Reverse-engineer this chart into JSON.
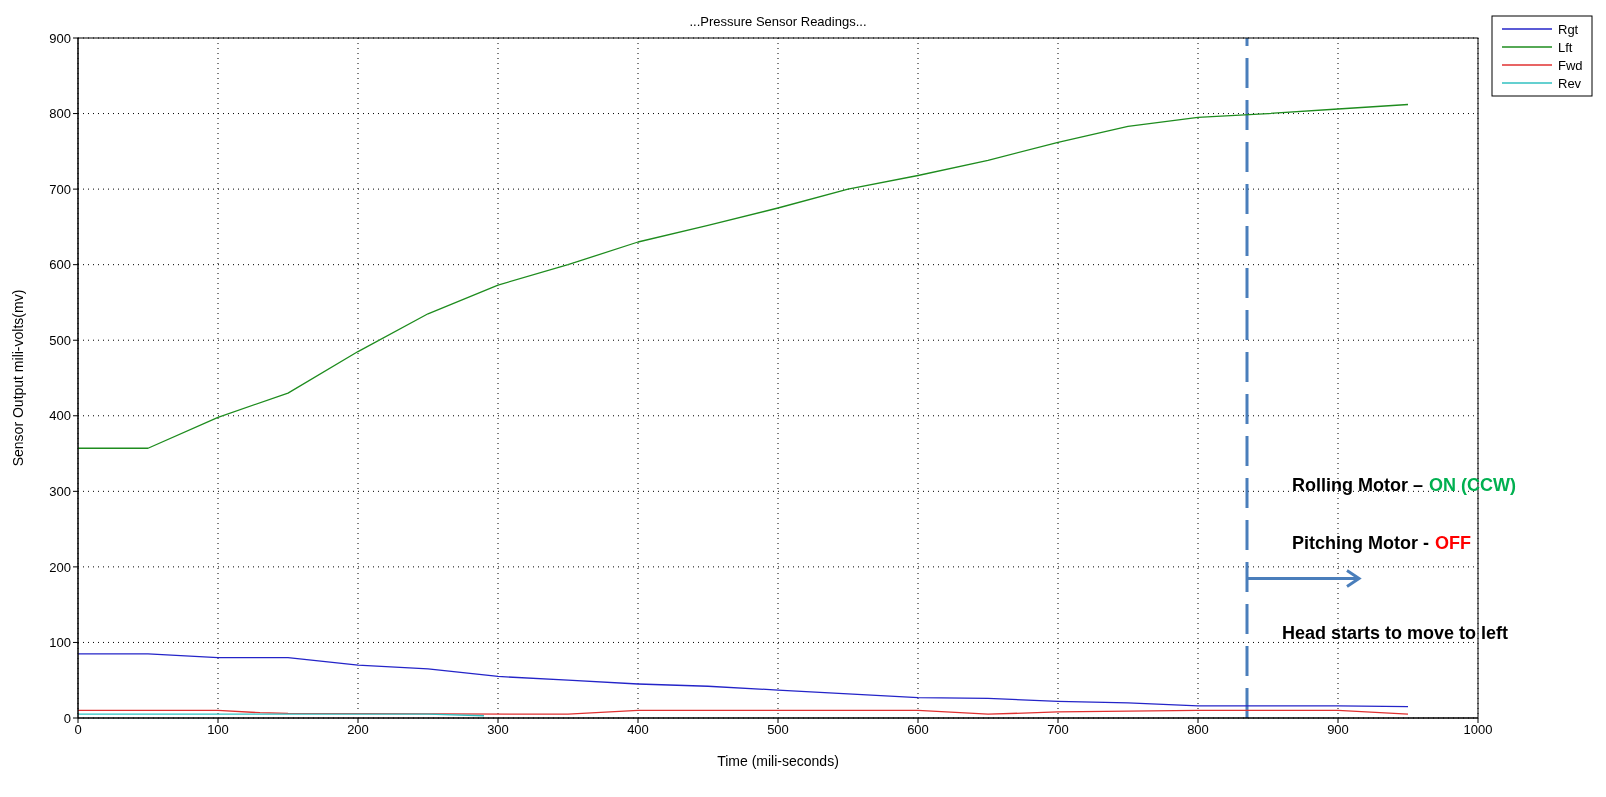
{
  "chart_data": {
    "type": "line",
    "title": "...Pressure Sensor Readings...",
    "xlabel": "Time (mili-seconds)",
    "ylabel": "Sensor Output mili-volts(mv)",
    "xlim": [
      0,
      1000
    ],
    "xticks": [
      0,
      100,
      200,
      300,
      400,
      500,
      600,
      700,
      800,
      900,
      1000
    ],
    "ylim": [
      0,
      900
    ],
    "yticks": [
      0,
      100,
      200,
      300,
      400,
      500,
      600,
      700,
      800,
      900
    ],
    "grid": true,
    "legend": "top right",
    "marker": "none",
    "line_style": "solid",
    "series": [
      {
        "name": "Rgt",
        "color": "#2424c8",
        "x": [
          0,
          50,
          100,
          150,
          200,
          250,
          300,
          350,
          400,
          450,
          500,
          550,
          600,
          650,
          700,
          750,
          800,
          850,
          900,
          950
        ],
        "values": [
          85,
          85,
          80,
          80,
          70,
          65,
          55,
          50,
          45,
          42,
          37,
          32,
          27,
          26,
          22,
          20,
          16,
          16,
          16,
          15
        ]
      },
      {
        "name": "Lft",
        "color": "#1e8c1e",
        "x": [
          0,
          50,
          100,
          150,
          200,
          250,
          300,
          350,
          400,
          450,
          500,
          550,
          600,
          650,
          700,
          750,
          800,
          850,
          900,
          950
        ],
        "values": [
          357,
          357,
          398,
          430,
          485,
          535,
          573,
          600,
          630,
          652,
          675,
          700,
          718,
          738,
          762,
          783,
          795,
          800,
          806,
          812
        ]
      },
      {
        "name": "Fwd",
        "color": "#e03030",
        "x": [
          0,
          100,
          130,
          150,
          350,
          400,
          600,
          650,
          700,
          800,
          900,
          950
        ],
        "values": [
          10,
          10,
          7,
          6,
          5,
          10,
          10,
          5,
          8,
          10,
          10,
          5
        ]
      },
      {
        "name": "Rev",
        "color": "#30c0c0",
        "x": [
          0,
          100,
          200,
          250,
          290
        ],
        "values": [
          5,
          5,
          5,
          5,
          3
        ]
      }
    ],
    "ref_lines": [
      {
        "axis": "x",
        "value": 835,
        "color": "#4a7ebb",
        "line_style": "dashed"
      }
    ],
    "annotations": [
      "Rolling Motor –",
      "ON (CCW)",
      "Pitching Motor -",
      "OFF",
      "Head starts to move to left"
    ]
  }
}
